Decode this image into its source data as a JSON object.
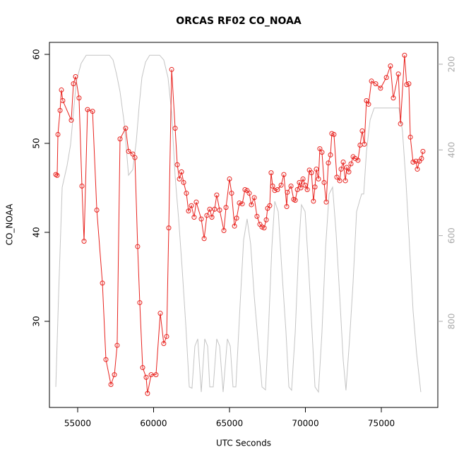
{
  "chart_data": {
    "type": "line",
    "title": "ORCAS RF02 CO_NOAA",
    "xlabel": "UTC Seconds",
    "ylabel": "CO_NOAA",
    "xlim": [
      53140,
      78720
    ],
    "ylim": [
      20.32,
      61.35
    ],
    "y2lim": [
      1001,
      149
    ],
    "xticks": [
      55000,
      60000,
      65000,
      70000,
      75000
    ],
    "yticks": [
      30,
      40,
      50,
      60
    ],
    "y2ticks": [
      200,
      400,
      600,
      800
    ],
    "series": [
      {
        "color": "#e8231f",
        "marker": "circle",
        "x": [
          53560,
          53650,
          53700,
          53840,
          53930,
          54020,
          54580,
          54720,
          54860,
          55090,
          55280,
          55420,
          55650,
          55980,
          56260,
          56630,
          56860,
          57190,
          57420,
          57600,
          57790,
          58160,
          58350,
          58630,
          58770,
          58950,
          59090,
          59280,
          59510,
          59600,
          59840,
          60160,
          60440,
          60670,
          60860,
          61000,
          61190,
          61420,
          61560,
          61700,
          61840,
          61980,
          62160,
          62300,
          62490,
          62670,
          62810,
          63140,
          63330,
          63510,
          63700,
          63840,
          64020,
          64160,
          64350,
          64630,
          64770,
          65000,
          65140,
          65330,
          65470,
          65650,
          65840,
          66020,
          66160,
          66300,
          66440,
          66630,
          66810,
          67000,
          67140,
          67280,
          67420,
          67510,
          67650,
          67740,
          67840,
          67980,
          68160,
          68400,
          68580,
          68770,
          68810,
          69050,
          69230,
          69330,
          69470,
          69600,
          69700,
          69840,
          69980,
          70120,
          70260,
          70400,
          70530,
          70630,
          70720,
          70860,
          70950,
          71090,
          71230,
          71370,
          71510,
          71650,
          71740,
          71880,
          72070,
          72260,
          72350,
          72490,
          72630,
          72720,
          72860,
          73000,
          73140,
          73280,
          73460,
          73600,
          73740,
          73880,
          74020,
          74160,
          74350,
          74630,
          74950,
          75330,
          75600,
          75790,
          76120,
          76260,
          76530,
          76670,
          76810,
          76910,
          77090,
          77280,
          77370,
          77510,
          77650,
          77740
        ],
        "values": [
          46.5,
          46.4,
          51.0,
          53.7,
          56.0,
          54.8,
          52.6,
          56.7,
          57.5,
          55.1,
          45.2,
          39.0,
          53.8,
          53.6,
          42.5,
          34.3,
          25.7,
          22.9,
          24.0,
          27.3,
          50.5,
          51.7,
          49.1,
          48.8,
          48.4,
          38.4,
          32.1,
          24.8,
          23.7,
          21.9,
          24.0,
          24.0,
          30.9,
          27.5,
          28.3,
          40.5,
          58.3,
          51.7,
          47.6,
          46.0,
          46.8,
          45.6,
          44.4,
          42.4,
          43.0,
          41.7,
          43.4,
          41.5,
          39.3,
          41.9,
          42.6,
          41.7,
          42.6,
          44.2,
          42.5,
          40.2,
          42.8,
          46.0,
          44.4,
          40.7,
          41.6,
          43.3,
          43.2,
          44.8,
          44.7,
          44.4,
          43.1,
          43.9,
          41.8,
          40.9,
          40.6,
          40.5,
          41.4,
          42.7,
          43.0,
          46.7,
          45.2,
          44.7,
          44.8,
          45.3,
          46.5,
          42.9,
          44.5,
          45.2,
          43.7,
          43.6,
          44.8,
          45.6,
          45.0,
          46.0,
          45.3,
          44.8,
          47.0,
          46.7,
          43.5,
          45.1,
          47.1,
          46.0,
          49.4,
          49.0,
          45.6,
          43.4,
          47.8,
          48.7,
          51.1,
          51.0,
          46.2,
          45.8,
          47.1,
          47.9,
          45.8,
          47.3,
          46.8,
          47.7,
          48.5,
          48.3,
          48.1,
          49.8,
          51.4,
          49.9,
          54.8,
          54.4,
          57.0,
          56.7,
          56.2,
          57.4,
          58.7,
          55.1,
          57.8,
          52.2,
          59.9,
          56.6,
          56.7,
          50.7,
          47.9,
          48.0,
          47.1,
          48.0,
          48.3,
          49.1
        ]
      },
      {
        "color": "#c4c4c4",
        "axis": "y2",
        "x": [
          53560,
          53740,
          53980,
          54300,
          54530,
          54720,
          54910,
          55230,
          55560,
          57090,
          57330,
          57560,
          57790,
          58070,
          58350,
          58630,
          58860,
          59050,
          59230,
          59470,
          59740,
          60400,
          60670,
          60950,
          61190,
          61420,
          61650,
          61880,
          62120,
          62350,
          62530,
          62720,
          62910,
          63140,
          63370,
          63560,
          63700,
          63930,
          64160,
          64350,
          64580,
          64860,
          65050,
          65230,
          65420,
          65700,
          65930,
          66160,
          66390,
          66630,
          66910,
          67140,
          67370,
          67560,
          67790,
          67980,
          68210,
          68440,
          68720,
          68910,
          69090,
          69330,
          69560,
          69740,
          69980,
          70210,
          70440,
          70630,
          70860,
          71090,
          71330,
          71560,
          71790,
          72020,
          72260,
          72490,
          72670,
          72910,
          73140,
          73370,
          73560,
          73700,
          73840,
          74020,
          74260,
          74530,
          76160,
          76390,
          76630,
          76860,
          77090,
          77320,
          77600
        ],
        "values": [
          953,
          742,
          487,
          437,
          388,
          314,
          240,
          198,
          179,
          179,
          190,
          223,
          264,
          338,
          459,
          446,
          380,
          297,
          231,
          195,
          179,
          179,
          190,
          231,
          314,
          462,
          561,
          676,
          808,
          953,
          956,
          858,
          841,
          965,
          841,
          858,
          953,
          953,
          841,
          858,
          965,
          841,
          858,
          953,
          953,
          759,
          610,
          561,
          619,
          742,
          858,
          953,
          960,
          825,
          627,
          520,
          544,
          676,
          825,
          953,
          961,
          825,
          627,
          528,
          544,
          676,
          825,
          953,
          965,
          825,
          627,
          503,
          487,
          594,
          742,
          891,
          961,
          841,
          709,
          544,
          520,
          503,
          503,
          404,
          330,
          302,
          302,
          355,
          479,
          627,
          775,
          874,
          965
        ]
      }
    ]
  }
}
